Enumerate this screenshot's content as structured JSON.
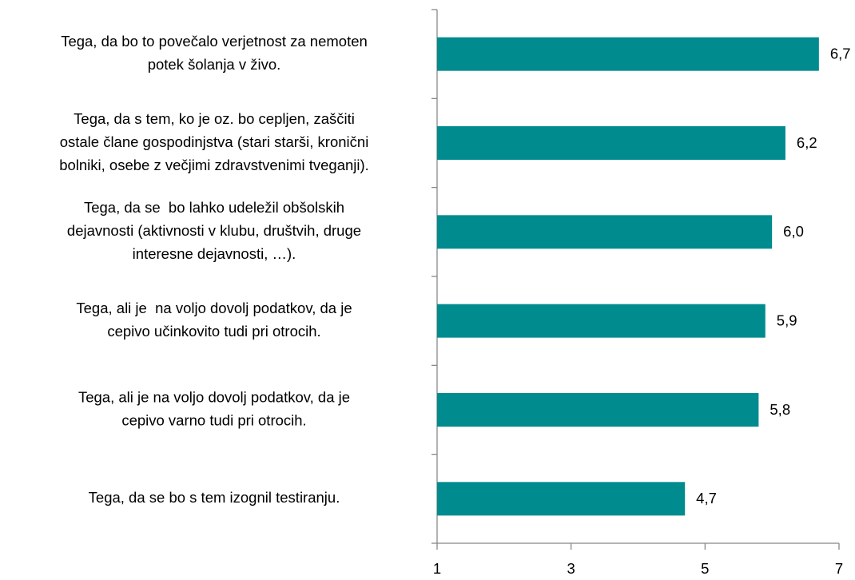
{
  "chart_data": {
    "type": "barh",
    "categories": [
      [
        "Tega, da bo to povečalo verjetnost za nemoten",
        "potek šolanja v živo."
      ],
      [
        "Tega, da s tem, ko je oz. bo cepljen, zaščiti",
        "ostale člane gospodinjstva (stari starši, kronični",
        "bolniki, osebe z večjimi zdravstvenimi tveganji)."
      ],
      [
        "Tega, da se  bo lahko udeležil obšolskih",
        "dejavnosti (aktivnosti v klubu, društvih, druge",
        "interesne dejavnosti, …)."
      ],
      [
        "Tega, ali je  na voljo dovolj podatkov, da je",
        "cepivo učinkovito tudi pri otrocih."
      ],
      [
        "Tega, ali je na voljo dovolj podatkov, da je",
        "cepivo varno tudi pri otrocih."
      ],
      [
        "Tega, da se bo s tem izognil testiranju."
      ]
    ],
    "values": [
      6.7,
      6.2,
      6.0,
      5.9,
      5.8,
      4.7
    ],
    "value_labels": [
      "6,7",
      "6,2",
      "6,0",
      "5,9",
      "5,8",
      "4,7"
    ],
    "color": "#008b8f",
    "xlim": [
      1,
      7
    ],
    "xticks": [
      1,
      3,
      5,
      7
    ],
    "grid": false
  }
}
